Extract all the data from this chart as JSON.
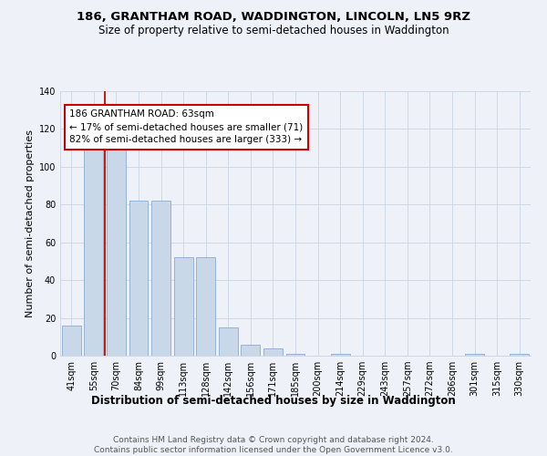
{
  "title": "186, GRANTHAM ROAD, WADDINGTON, LINCOLN, LN5 9RZ",
  "subtitle": "Size of property relative to semi-detached houses in Waddington",
  "xlabel": "Distribution of semi-detached houses by size in Waddington",
  "ylabel": "Number of semi-detached properties",
  "categories": [
    "41sqm",
    "55sqm",
    "70sqm",
    "84sqm",
    "99sqm",
    "113sqm",
    "128sqm",
    "142sqm",
    "156sqm",
    "171sqm",
    "185sqm",
    "200sqm",
    "214sqm",
    "229sqm",
    "243sqm",
    "257sqm",
    "272sqm",
    "286sqm",
    "301sqm",
    "315sqm",
    "330sqm"
  ],
  "values": [
    16,
    117,
    116,
    82,
    82,
    52,
    52,
    15,
    6,
    4,
    1,
    0,
    1,
    0,
    0,
    0,
    0,
    0,
    1,
    0,
    1
  ],
  "bar_color": "#c8d8e8",
  "bar_edge_color": "#8aabcf",
  "subject_label": "186 GRANTHAM ROAD: 63sqm",
  "smaller_pct": "17%",
  "smaller_n": 71,
  "larger_pct": "82%",
  "larger_n": 333,
  "annotation_box_color": "#ffffff",
  "annotation_box_edge": "#cc0000",
  "subject_line_color": "#cc0000",
  "ylim": [
    0,
    140
  ],
  "yticks": [
    0,
    20,
    40,
    60,
    80,
    100,
    120,
    140
  ],
  "grid_color": "#c8d4e4",
  "background_color": "#eef2f8",
  "footer_text": "Contains HM Land Registry data © Crown copyright and database right 2024.\nContains public sector information licensed under the Open Government Licence v3.0.",
  "title_fontsize": 9.5,
  "subtitle_fontsize": 8.5,
  "xlabel_fontsize": 8.5,
  "ylabel_fontsize": 8,
  "tick_fontsize": 7,
  "annotation_fontsize": 7.5,
  "footer_fontsize": 6.5
}
